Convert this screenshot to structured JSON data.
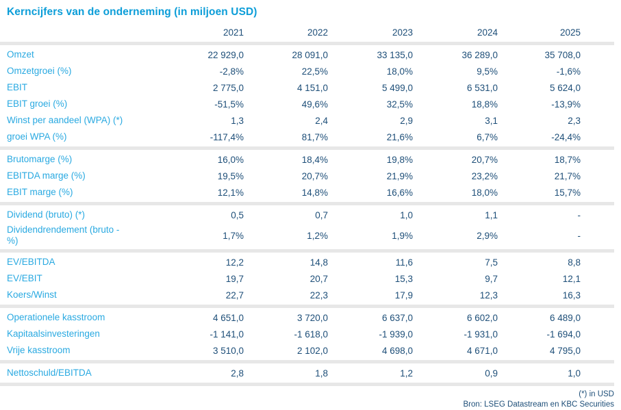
{
  "chart_data": {
    "type": "table",
    "title": "Kerncijfers van de onderneming (in miljoen USD)",
    "columns": [
      "2021",
      "2022",
      "2023",
      "2024",
      "2025"
    ],
    "sections": [
      {
        "rows": [
          {
            "label": "Omzet",
            "values": [
              "22 929,0",
              "28 091,0",
              "33 135,0",
              "36 289,0",
              "35 708,0"
            ]
          },
          {
            "label": "Omzetgroei (%)",
            "values": [
              "-2,8%",
              "22,5%",
              "18,0%",
              "9,5%",
              "-1,6%"
            ]
          },
          {
            "label": "EBIT",
            "values": [
              "2 775,0",
              "4 151,0",
              "5 499,0",
              "6 531,0",
              "5 624,0"
            ]
          },
          {
            "label": "EBIT groei (%)",
            "values": [
              "-51,5%",
              "49,6%",
              "32,5%",
              "18,8%",
              "-13,9%"
            ]
          },
          {
            "label": "Winst per aandeel (WPA) (*)",
            "values": [
              "1,3",
              "2,4",
              "2,9",
              "3,1",
              "2,3"
            ]
          },
          {
            "label": "groei WPA (%)",
            "values": [
              "-117,4%",
              "81,7%",
              "21,6%",
              "6,7%",
              "-24,4%"
            ]
          }
        ]
      },
      {
        "rows": [
          {
            "label": "Brutomarge (%)",
            "values": [
              "16,0%",
              "18,4%",
              "19,8%",
              "20,7%",
              "18,7%"
            ]
          },
          {
            "label": "EBITDA marge (%)",
            "values": [
              "19,5%",
              "20,7%",
              "21,9%",
              "23,2%",
              "21,7%"
            ]
          },
          {
            "label": "EBIT marge (%)",
            "values": [
              "12,1%",
              "14,8%",
              "16,6%",
              "18,0%",
              "15,7%"
            ]
          }
        ]
      },
      {
        "rows": [
          {
            "label": "Dividend (bruto) (*)",
            "values": [
              "0,5",
              "0,7",
              "1,0",
              "1,1",
              "-"
            ]
          },
          {
            "label": "Dividendrendement (bruto -\n%)",
            "values": [
              "1,7%",
              "1,2%",
              "1,9%",
              "2,9%",
              "-"
            ]
          }
        ]
      },
      {
        "rows": [
          {
            "label": "EV/EBITDA",
            "values": [
              "12,2",
              "14,8",
              "11,6",
              "7,5",
              "8,8"
            ]
          },
          {
            "label": "EV/EBIT",
            "values": [
              "19,7",
              "20,7",
              "15,3",
              "9,7",
              "12,1"
            ]
          },
          {
            "label": "Koers/Winst",
            "values": [
              "22,7",
              "22,3",
              "17,9",
              "12,3",
              "16,3"
            ]
          }
        ]
      },
      {
        "rows": [
          {
            "label": "Operationele kasstroom",
            "values": [
              "4 651,0",
              "3 720,0",
              "6 637,0",
              "6 602,0",
              "6 489,0"
            ]
          },
          {
            "label": "Kapitaalsinvesteringen",
            "values": [
              "-1 141,0",
              "-1 618,0",
              "-1 939,0",
              "-1 931,0",
              "-1 694,0"
            ]
          },
          {
            "label": "Vrije kasstroom",
            "values": [
              "3 510,0",
              "2 102,0",
              "4 698,0",
              "4 671,0",
              "4 795,0"
            ]
          }
        ]
      },
      {
        "rows": [
          {
            "label": "Nettoschuld/EBITDA",
            "values": [
              "2,8",
              "1,8",
              "1,2",
              "0,9",
              "1,0"
            ]
          }
        ]
      }
    ],
    "footnote": "(*) in USD",
    "source": "Bron: LSEG Datastream en KBC Securities",
    "layout_hints": {
      "value_alignment": "right",
      "section_separator_bands": true,
      "legend": "none"
    }
  },
  "colors": {
    "title_blue": "#0b9dd8",
    "label_blue": "#29a9e1",
    "value_navy": "#1d4e78",
    "separator_gray": "#e7e7e7",
    "background": "#ffffff"
  }
}
